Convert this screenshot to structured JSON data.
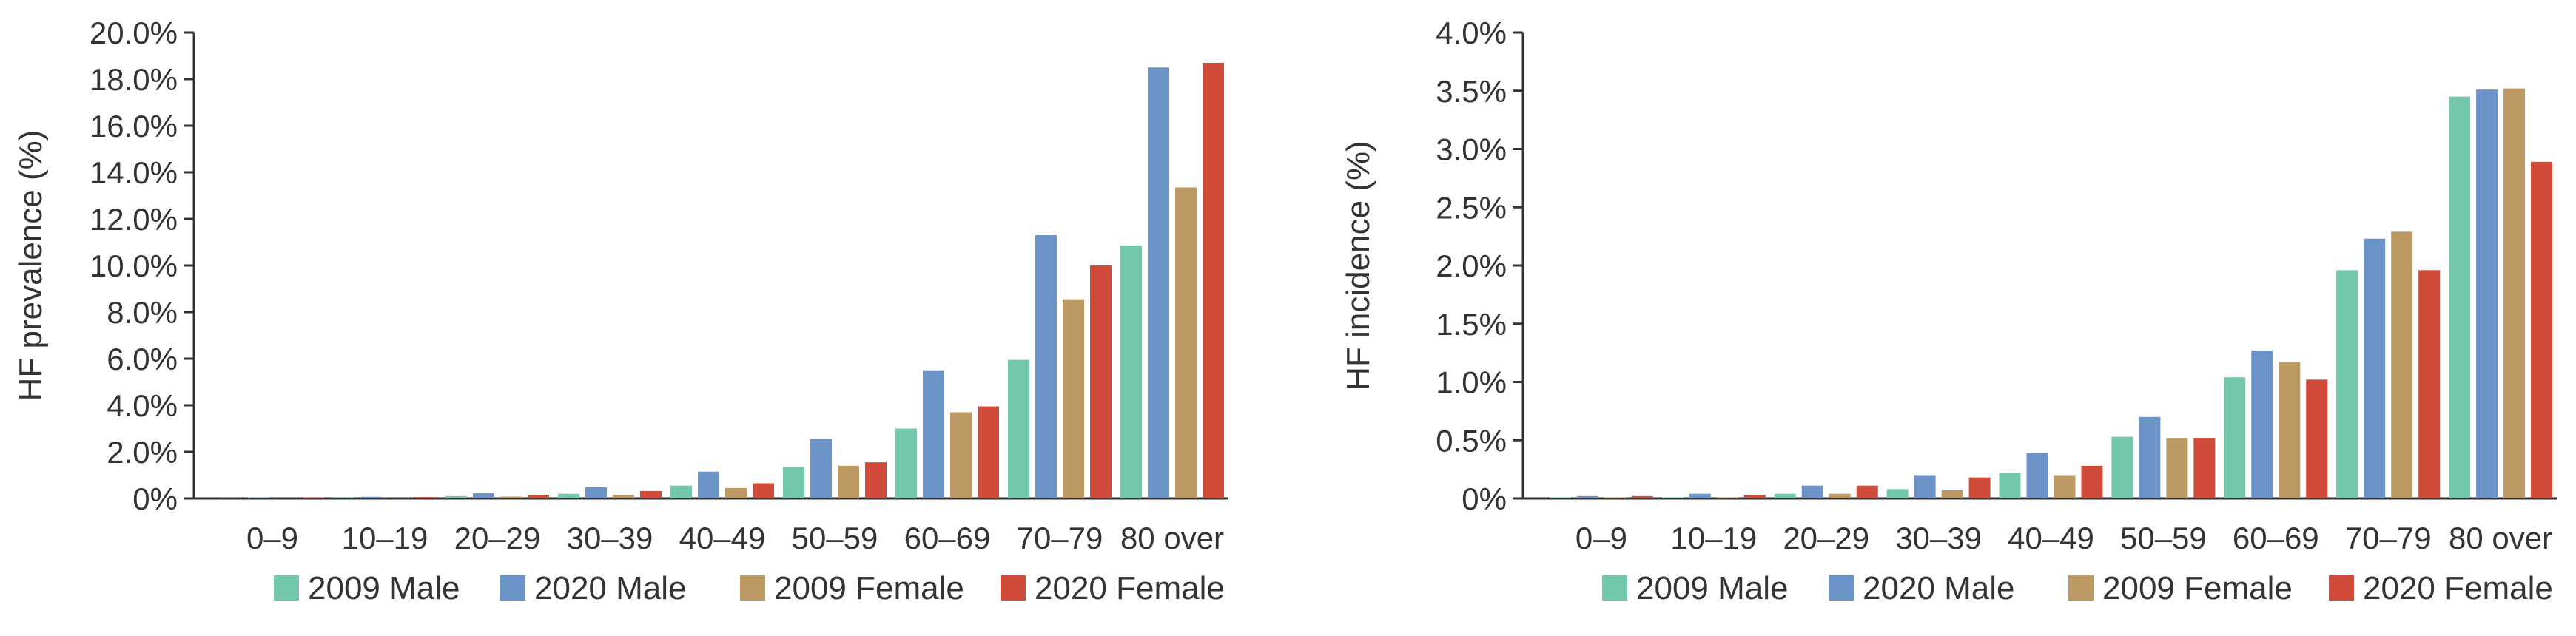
{
  "chart_data": [
    {
      "type": "bar",
      "ylabel": "HF prevalence (%)",
      "xlabel": "",
      "ylim": [
        0,
        20
      ],
      "yticks": [
        "0%",
        "2.0%",
        "4.0%",
        "6.0%",
        "8.0%",
        "10.0%",
        "12.0%",
        "14.0%",
        "16.0%",
        "18.0%",
        "20.0%"
      ],
      "categories": [
        "0–9",
        "10–19",
        "20–29",
        "30–39",
        "40–49",
        "50–59",
        "60–69",
        "70–79",
        "80 over"
      ],
      "legend_position": "bottom",
      "series": [
        {
          "name": "2009 Male",
          "color": "#72c7ad",
          "values": [
            0.02,
            0.04,
            0.1,
            0.2,
            0.55,
            1.35,
            3.0,
            5.95,
            10.85
          ]
        },
        {
          "name": "2020 Male",
          "color": "#6b93c8",
          "values": [
            0.05,
            0.07,
            0.22,
            0.48,
            1.15,
            2.55,
            5.5,
            11.3,
            18.5
          ]
        },
        {
          "name": "2009 Female",
          "color": "#bd9a64",
          "values": [
            0.02,
            0.03,
            0.08,
            0.15,
            0.45,
            1.4,
            3.7,
            8.55,
            13.35
          ]
        },
        {
          "name": "2020 Female",
          "color": "#d14b3a",
          "values": [
            0.05,
            0.06,
            0.15,
            0.32,
            0.65,
            1.55,
            3.95,
            10.0,
            18.7
          ]
        }
      ]
    },
    {
      "type": "bar",
      "ylabel": "HF incidence (%)",
      "xlabel": "",
      "ylim": [
        0,
        4
      ],
      "yticks": [
        "0%",
        "0.5%",
        "1.0%",
        "1.5%",
        "2.0%",
        "2.5%",
        "3.0%",
        "3.5%",
        "4.0%"
      ],
      "categories": [
        "0–9",
        "10–19",
        "20–29",
        "30–39",
        "40–49",
        "50–59",
        "60–69",
        "70–79",
        "80 over"
      ],
      "legend_position": "bottom",
      "series": [
        {
          "name": "2009 Male",
          "color": "#72c7ad",
          "values": [
            0.01,
            0.01,
            0.04,
            0.08,
            0.22,
            0.53,
            1.04,
            1.96,
            3.45
          ]
        },
        {
          "name": "2020 Male",
          "color": "#6b93c8",
          "values": [
            0.02,
            0.04,
            0.11,
            0.2,
            0.39,
            0.7,
            1.27,
            2.23,
            3.51
          ]
        },
        {
          "name": "2009 Female",
          "color": "#bd9a64",
          "values": [
            0.01,
            0.01,
            0.04,
            0.07,
            0.2,
            0.52,
            1.17,
            2.29,
            3.52
          ]
        },
        {
          "name": "2020 Female",
          "color": "#d14b3a",
          "values": [
            0.02,
            0.03,
            0.11,
            0.18,
            0.28,
            0.52,
            1.02,
            1.96,
            2.89
          ]
        }
      ]
    }
  ]
}
